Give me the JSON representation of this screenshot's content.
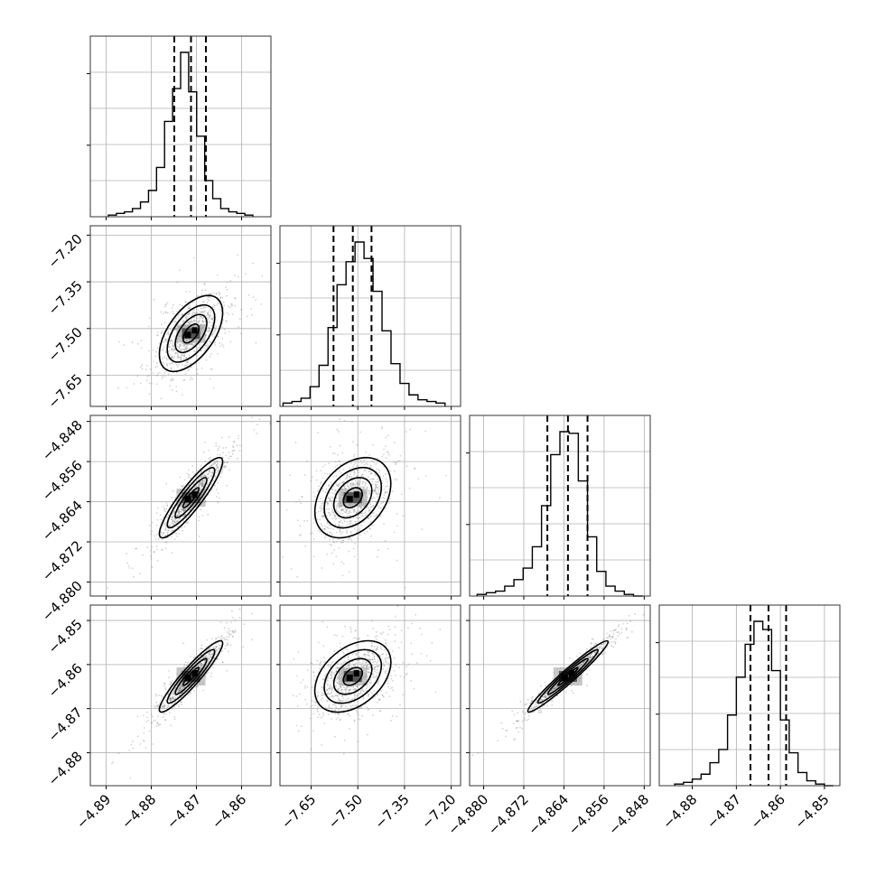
{
  "chart_data": {
    "type": "corner",
    "parameters": 4,
    "x_ticks": [
      [
        "−4.89",
        "−4.88",
        "−4.87",
        "−4.86"
      ],
      [
        "−7.65",
        "−7.50",
        "−7.35",
        "−7.20"
      ],
      [
        "−4.880",
        "−4.872",
        "−4.864",
        "−4.856",
        "−4.848"
      ],
      [
        "−4.88",
        "−4.87",
        "−4.86",
        "−4.85"
      ]
    ],
    "y_ticks": [
      [],
      [
        "−7.20",
        "−7.35",
        "−7.50",
        "−7.65"
      ],
      [
        "−4.848",
        "−4.856",
        "−4.864",
        "−4.872",
        "−4.880"
      ],
      [
        "−4.85",
        "−4.86",
        "−4.87",
        "−4.88"
      ]
    ],
    "ranges": [
      [
        -4.8935,
        -4.8535
      ],
      [
        -7.75,
        -7.17
      ],
      [
        -4.8828,
        -4.8468
      ],
      [
        -4.8875,
        -4.8465
      ]
    ],
    "medians": [
      -4.8712,
      -7.516,
      -4.8632,
      -4.8627
    ],
    "quantiles_16_84": [
      [
        -4.8749,
        -4.8679
      ],
      [
        -7.578,
        -7.456
      ],
      [
        -4.8673,
        -4.8593
      ],
      [
        -4.8668,
        -4.8587
      ]
    ],
    "histograms": [
      {
        "counts": [
          1,
          2,
          3,
          5,
          9,
          16,
          30,
          58,
          78,
          100,
          76,
          49,
          22,
          11,
          5,
          3,
          2,
          1
        ],
        "range": [
          -4.8895,
          -4.8575
        ]
      },
      {
        "counts": [
          2,
          3,
          5,
          12,
          25,
          48,
          74,
          88,
          100,
          90,
          70,
          46,
          26,
          14,
          7,
          4,
          3,
          2
        ],
        "range": [
          -7.74,
          -7.22
        ]
      },
      {
        "counts": [
          1,
          2,
          3,
          6,
          10,
          17,
          30,
          55,
          86,
          100,
          99,
          70,
          36,
          15,
          6,
          3,
          1,
          0
        ],
        "range": [
          -4.8813,
          -4.8483
        ]
      },
      {
        "counts": [
          1,
          2,
          4,
          7,
          14,
          22,
          43,
          66,
          86,
          100,
          95,
          70,
          40,
          20,
          8,
          3,
          1,
          0
        ],
        "range": [
          -4.884,
          -4.848
        ]
      }
    ],
    "grid": true,
    "colors": {
      "contour": "#000000",
      "points": "#808080",
      "grid": "#b0b0b0"
    }
  }
}
